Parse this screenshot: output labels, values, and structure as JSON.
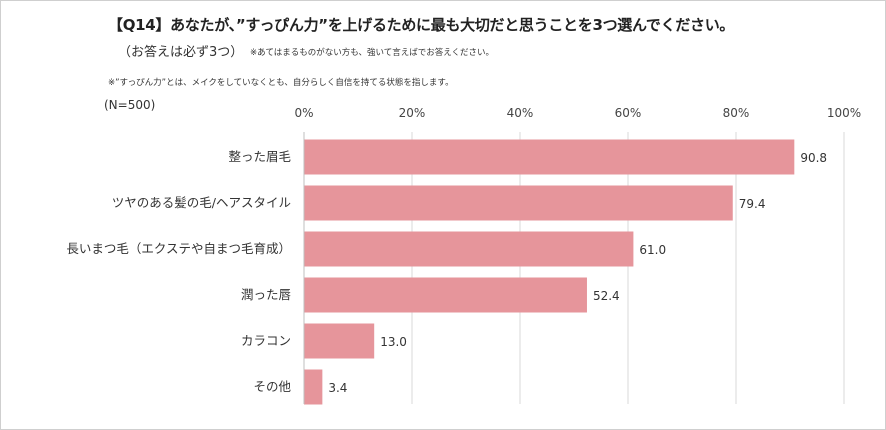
{
  "header": {
    "title": "【Q14】あなたが、”すっぴん力”を上げるために最も大切だと思うことを3つ選んでください。",
    "answer_note": "（お答えは必ず3つ）",
    "answer_note_small": "※あてはまるものがない方も、強いて言えばでお答えください。",
    "definition_note": "※”すっぴん力”とは、メイクをしていなくとも、自分らしく自信を持てる状態を指します。",
    "sample_size": "(N=500)"
  },
  "colors": {
    "bar": "#e6959b",
    "grid": "#d9d9d9"
  },
  "chart_data": {
    "type": "bar",
    "orientation": "horizontal",
    "title": "【Q14】あなたが、”すっぴん力”を上げるために最も大切だと思うことを3つ選んでください。",
    "categories": [
      "整った眉毛",
      "ツヤのある髪の毛/ヘアスタイル",
      "長いまつ毛（エクステや自まつ毛育成）",
      "潤った唇",
      "カラコン",
      "その他"
    ],
    "values": [
      90.8,
      79.4,
      61.0,
      52.4,
      13.0,
      3.4
    ],
    "value_labels": [
      "90.8",
      "79.4",
      "61.0",
      "52.4",
      "13.0",
      "3.4"
    ],
    "xlim": [
      0,
      100
    ],
    "ticks": [
      0,
      20,
      40,
      60,
      80,
      100
    ],
    "tick_labels": [
      "0%",
      "20%",
      "40%",
      "60%",
      "80%",
      "100%"
    ],
    "tick_position": "top",
    "grid": true,
    "unit": "%"
  }
}
